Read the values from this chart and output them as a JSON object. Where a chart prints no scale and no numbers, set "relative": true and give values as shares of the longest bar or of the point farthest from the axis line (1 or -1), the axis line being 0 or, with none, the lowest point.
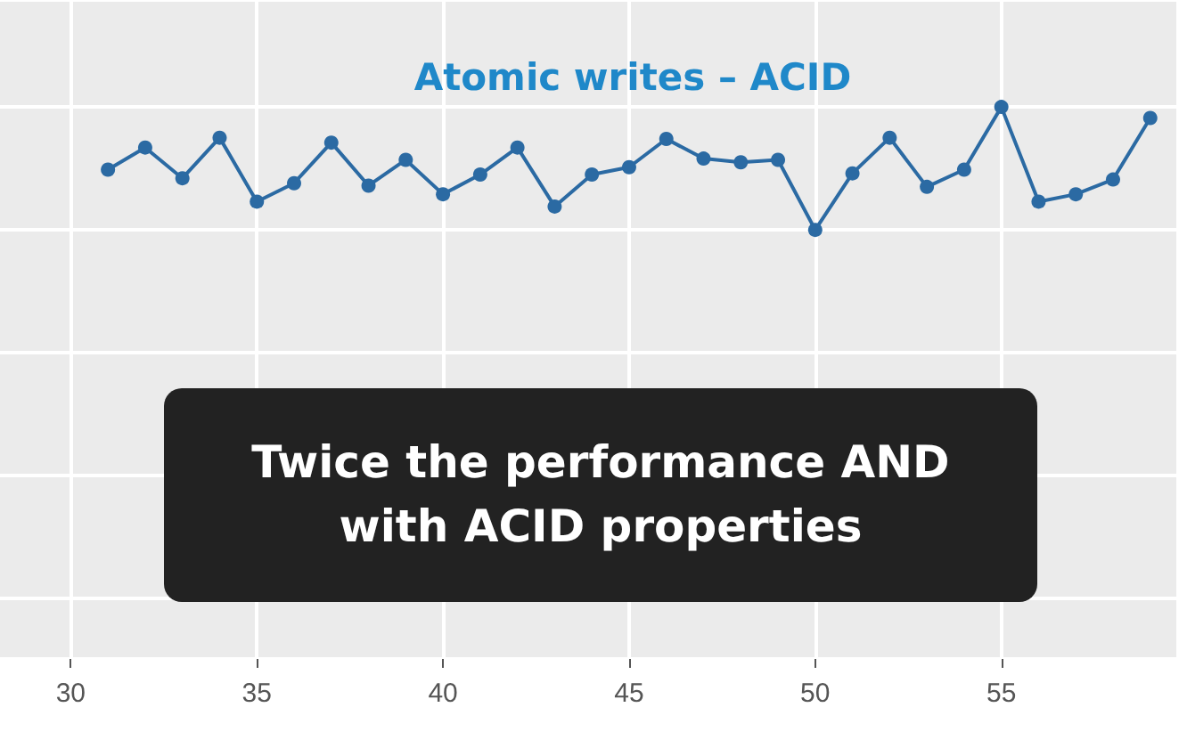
{
  "chart_data": {
    "type": "line",
    "title": "Atomic writes – ACID",
    "relative": true,
    "x": [
      31,
      32,
      33,
      34,
      35,
      36,
      37,
      38,
      39,
      40,
      41,
      42,
      43,
      44,
      45,
      46,
      47,
      48,
      49,
      50,
      51,
      52,
      53,
      54,
      55,
      56,
      57,
      58,
      59
    ],
    "series": [
      {
        "color": "#2b6aa3",
        "values": [
          0.49,
          0.67,
          0.42,
          0.75,
          0.23,
          0.38,
          0.71,
          0.36,
          0.57,
          0.29,
          0.45,
          0.67,
          0.19,
          0.45,
          0.51,
          0.74,
          0.58,
          0.55,
          0.57,
          0,
          0.46,
          0.75,
          0.35,
          0.49,
          1,
          0.23,
          0.29,
          0.41,
          0.91
        ]
      }
    ],
    "xlim": [
      28.1,
      59.7
    ],
    "xticks": [
      30,
      35,
      40,
      45,
      50,
      55
    ],
    "tick_labels": "x",
    "grid": true,
    "marker": "circle",
    "line_style": "solid",
    "annotations": [
      "Twice the performance AND with ACID properties"
    ]
  }
}
